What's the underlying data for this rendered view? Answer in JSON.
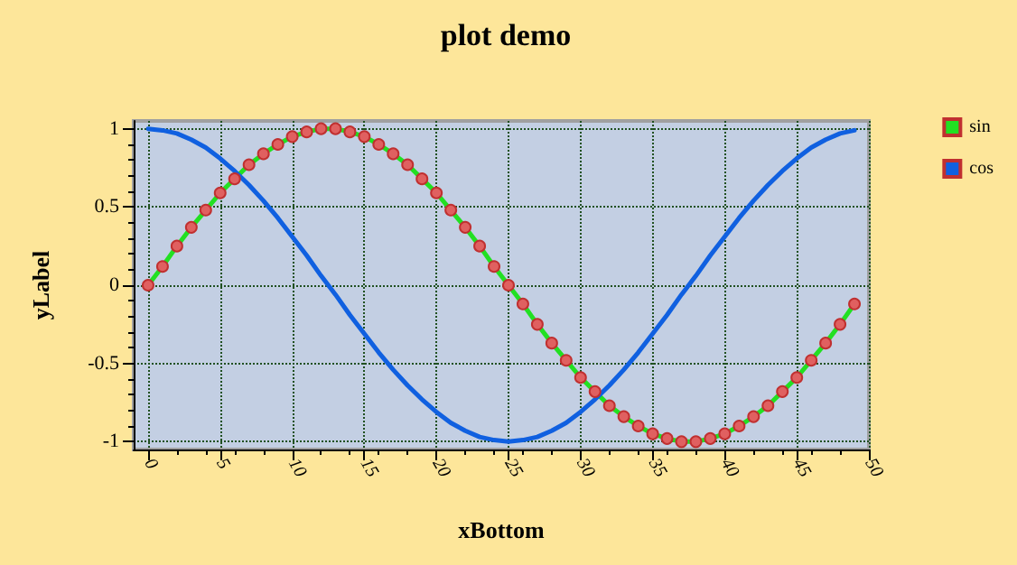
{
  "chart_data": {
    "type": "line",
    "title": "plot demo",
    "xlabel": "xBottom",
    "ylabel": "yLabel",
    "x": [
      0,
      1,
      2,
      3,
      4,
      5,
      6,
      7,
      8,
      9,
      10,
      11,
      12,
      13,
      14,
      15,
      16,
      17,
      18,
      19,
      20,
      21,
      22,
      23,
      24,
      25,
      26,
      27,
      28,
      29,
      30,
      31,
      32,
      33,
      34,
      35,
      36,
      37,
      38,
      39,
      40,
      41,
      42,
      43,
      44,
      45,
      46,
      47,
      48,
      49
    ],
    "series": [
      {
        "name": "sin",
        "color": "#22e022",
        "marker": "circle",
        "values": [
          0,
          0.12,
          0.25,
          0.37,
          0.48,
          0.59,
          0.68,
          0.77,
          0.84,
          0.9,
          0.95,
          0.98,
          1,
          1,
          0.98,
          0.95,
          0.9,
          0.84,
          0.77,
          0.68,
          0.59,
          0.48,
          0.37,
          0.25,
          0.12,
          0,
          -0.12,
          -0.25,
          -0.37,
          -0.48,
          -0.59,
          -0.68,
          -0.77,
          -0.84,
          -0.9,
          -0.95,
          -0.98,
          -1,
          -1,
          -0.98,
          -0.95,
          -0.9,
          -0.84,
          -0.77,
          -0.68,
          -0.59,
          -0.48,
          -0.37,
          -0.25,
          -0.12
        ]
      },
      {
        "name": "cos",
        "color": "#1060e0",
        "marker": "none",
        "values": [
          1,
          0.99,
          0.97,
          0.93,
          0.88,
          0.81,
          0.73,
          0.64,
          0.54,
          0.43,
          0.31,
          0.19,
          0.06,
          -0.06,
          -0.19,
          -0.31,
          -0.43,
          -0.54,
          -0.64,
          -0.73,
          -0.81,
          -0.88,
          -0.93,
          -0.97,
          -0.99,
          -1,
          -0.99,
          -0.97,
          -0.93,
          -0.88,
          -0.81,
          -0.73,
          -0.64,
          -0.54,
          -0.43,
          -0.31,
          -0.19,
          -0.06,
          0.06,
          0.19,
          0.31,
          0.43,
          0.54,
          0.64,
          0.73,
          0.81,
          0.88,
          0.93,
          0.97,
          0.99
        ]
      }
    ],
    "xlim": [
      -1,
      50
    ],
    "xticks": [
      0,
      5,
      10,
      15,
      20,
      25,
      30,
      35,
      40,
      45,
      50
    ],
    "ylim": [
      -1.05,
      1.05
    ],
    "yticks": [
      -1,
      -0.5,
      0,
      0.5,
      1
    ],
    "grid": true,
    "legend": "top right",
    "line_style": "solid"
  }
}
